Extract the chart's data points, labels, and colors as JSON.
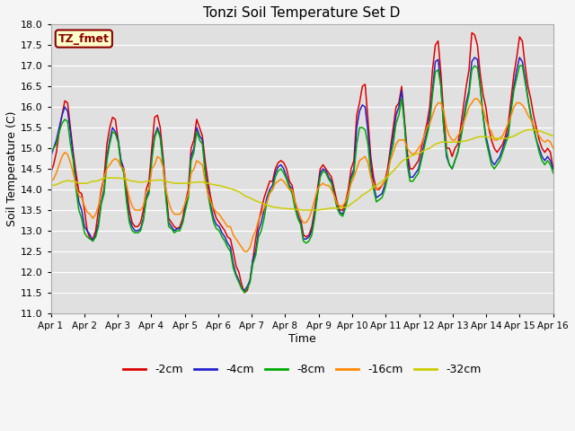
{
  "title": "Tonzi Soil Temperature Set D",
  "xlabel": "Time",
  "ylabel": "Soil Temperature (C)",
  "ylim": [
    11.0,
    18.0
  ],
  "xlim": [
    0,
    15
  ],
  "yticks": [
    11.0,
    11.5,
    12.0,
    12.5,
    13.0,
    13.5,
    14.0,
    14.5,
    15.0,
    15.5,
    16.0,
    16.5,
    17.0,
    17.5,
    18.0
  ],
  "xtick_labels": [
    "Apr 1",
    "Apr 2",
    "Apr 3",
    "Apr 4",
    "Apr 5",
    "Apr 6",
    "Apr 7",
    "Apr 8",
    "Apr 9",
    "Apr 10",
    "Apr 11",
    "Apr 12",
    "Apr 13",
    "Apr 14",
    "Apr 15",
    "Apr 16"
  ],
  "xtick_positions": [
    0,
    1,
    2,
    3,
    4,
    5,
    6,
    7,
    8,
    9,
    10,
    11,
    12,
    13,
    14,
    15
  ],
  "legend_labels": [
    "-2cm",
    "-4cm",
    "-8cm",
    "-16cm",
    "-32cm"
  ],
  "line_colors": [
    "#dd0000",
    "#2222cc",
    "#00aa00",
    "#ff8800",
    "#cccc00"
  ],
  "annotation_text": "TZ_fmet",
  "annotation_color": "#8b0000",
  "annotation_bg": "#ffffcc",
  "bg_color": "#e8e8e8",
  "plot_bg": "#e0e0e0",
  "grid_color": "#ffffff",
  "n_points": 180,
  "series": {
    "neg2cm": [
      14.4,
      14.6,
      14.9,
      15.4,
      15.8,
      16.15,
      16.1,
      15.5,
      14.9,
      14.4,
      13.95,
      13.9,
      13.5,
      13.0,
      12.8,
      12.8,
      13.0,
      13.5,
      14.0,
      14.3,
      15.1,
      15.5,
      15.75,
      15.7,
      15.2,
      14.7,
      14.5,
      14.0,
      13.5,
      13.2,
      13.1,
      13.1,
      13.2,
      13.5,
      14.0,
      14.2,
      15.0,
      15.75,
      15.8,
      15.5,
      14.8,
      14.0,
      13.3,
      13.2,
      13.1,
      13.05,
      13.1,
      13.3,
      13.7,
      14.0,
      15.0,
      15.2,
      15.7,
      15.5,
      15.3,
      14.7,
      14.2,
      13.8,
      13.5,
      13.3,
      13.2,
      13.1,
      13.0,
      12.85,
      12.8,
      12.5,
      12.15,
      12.0,
      11.7,
      11.5,
      11.55,
      11.8,
      12.3,
      12.8,
      13.2,
      13.5,
      13.8,
      14.0,
      14.2,
      14.2,
      14.5,
      14.65,
      14.7,
      14.65,
      14.5,
      14.2,
      14.1,
      13.7,
      13.5,
      13.3,
      12.9,
      12.85,
      12.9,
      13.1,
      13.5,
      14.0,
      14.5,
      14.6,
      14.5,
      14.4,
      14.3,
      14.0,
      13.7,
      13.5,
      13.5,
      13.7,
      14.0,
      14.5,
      14.7,
      15.8,
      16.1,
      16.5,
      16.55,
      15.7,
      14.8,
      14.3,
      14.0,
      14.0,
      14.1,
      14.2,
      14.5,
      15.0,
      15.5,
      16.0,
      16.1,
      16.5,
      15.7,
      14.9,
      14.5,
      14.5,
      14.6,
      14.7,
      15.0,
      15.3,
      15.6,
      16.0,
      16.9,
      17.5,
      17.6,
      16.8,
      15.8,
      15.0,
      15.0,
      14.8,
      15.0,
      15.1,
      15.5,
      16.0,
      16.5,
      16.9,
      17.8,
      17.75,
      17.5,
      16.8,
      16.3,
      16.0,
      15.5,
      15.2,
      15.0,
      14.9,
      15.0,
      15.1,
      15.3,
      15.6,
      16.2,
      16.8,
      17.2,
      17.7,
      17.6,
      17.0,
      16.5,
      16.2,
      15.8,
      15.5,
      15.2,
      15.0,
      14.9,
      15.0,
      14.9,
      14.5
    ],
    "neg4cm": [
      14.8,
      15.0,
      15.2,
      15.5,
      15.8,
      16.0,
      15.9,
      15.4,
      14.8,
      14.2,
      13.7,
      13.5,
      13.1,
      13.0,
      12.9,
      12.75,
      12.9,
      13.2,
      13.7,
      14.0,
      14.8,
      15.2,
      15.5,
      15.4,
      15.2,
      14.7,
      14.5,
      13.8,
      13.3,
      13.1,
      13.0,
      13.0,
      13.05,
      13.3,
      13.8,
      14.0,
      14.8,
      15.3,
      15.5,
      15.3,
      14.7,
      13.9,
      13.2,
      13.1,
      13.0,
      13.05,
      13.05,
      13.2,
      13.6,
      13.9,
      14.8,
      15.0,
      15.5,
      15.3,
      15.2,
      14.5,
      14.0,
      13.6,
      13.3,
      13.15,
      13.1,
      12.95,
      12.85,
      12.7,
      12.6,
      12.2,
      11.95,
      11.8,
      11.6,
      11.55,
      11.65,
      11.8,
      12.3,
      12.5,
      13.0,
      13.2,
      13.5,
      13.8,
      14.0,
      14.1,
      14.4,
      14.55,
      14.6,
      14.5,
      14.3,
      14.1,
      14.0,
      13.6,
      13.4,
      13.2,
      12.8,
      12.8,
      12.85,
      13.0,
      13.4,
      13.9,
      14.4,
      14.5,
      14.45,
      14.3,
      14.2,
      13.9,
      13.6,
      13.45,
      13.4,
      13.6,
      13.9,
      14.3,
      14.5,
      15.5,
      15.9,
      16.05,
      16.0,
      15.4,
      14.6,
      14.1,
      13.8,
      13.85,
      13.9,
      14.1,
      14.4,
      14.9,
      15.3,
      15.8,
      16.0,
      16.4,
      15.6,
      14.8,
      14.3,
      14.3,
      14.4,
      14.5,
      14.8,
      15.1,
      15.4,
      15.8,
      16.4,
      17.1,
      17.15,
      16.5,
      15.5,
      14.8,
      14.6,
      14.5,
      14.7,
      14.9,
      15.3,
      15.7,
      16.1,
      16.4,
      17.1,
      17.2,
      17.15,
      16.5,
      15.8,
      15.3,
      15.0,
      14.7,
      14.6,
      14.7,
      14.8,
      15.0,
      15.2,
      15.4,
      16.0,
      16.5,
      16.9,
      17.2,
      17.1,
      16.7,
      16.2,
      15.8,
      15.5,
      15.2,
      15.0,
      14.8,
      14.7,
      14.8,
      14.7,
      14.5
    ],
    "neg8cm": [
      14.9,
      15.0,
      15.1,
      15.4,
      15.6,
      15.7,
      15.65,
      15.1,
      14.7,
      14.0,
      13.5,
      13.3,
      12.95,
      12.85,
      12.8,
      12.75,
      12.85,
      13.1,
      13.65,
      13.9,
      14.7,
      15.1,
      15.4,
      15.35,
      15.15,
      14.6,
      14.4,
      13.7,
      13.2,
      13.0,
      12.95,
      12.95,
      13.0,
      13.25,
      13.75,
      13.9,
      14.7,
      15.25,
      15.45,
      15.25,
      14.6,
      13.8,
      13.1,
      13.05,
      12.95,
      13.0,
      13.0,
      13.2,
      13.5,
      13.8,
      14.7,
      14.9,
      15.4,
      15.2,
      15.1,
      14.4,
      13.9,
      13.5,
      13.2,
      13.05,
      13.0,
      12.85,
      12.75,
      12.6,
      12.5,
      12.1,
      11.9,
      11.75,
      11.6,
      11.5,
      11.6,
      11.75,
      12.2,
      12.4,
      12.85,
      13.0,
      13.3,
      13.7,
      13.95,
      14.0,
      14.3,
      14.45,
      14.5,
      14.4,
      14.25,
      14.05,
      13.9,
      13.55,
      13.3,
      13.15,
      12.75,
      12.7,
      12.75,
      12.9,
      13.3,
      13.85,
      14.3,
      14.45,
      14.4,
      14.25,
      14.15,
      13.85,
      13.55,
      13.4,
      13.35,
      13.55,
      13.85,
      14.25,
      14.4,
      15.1,
      15.5,
      15.5,
      15.45,
      15.1,
      14.4,
      14.0,
      13.7,
      13.75,
      13.8,
      14.0,
      14.3,
      14.8,
      15.1,
      15.6,
      15.8,
      16.2,
      15.6,
      14.6,
      14.2,
      14.2,
      14.3,
      14.4,
      14.7,
      15.0,
      15.3,
      15.6,
      16.3,
      16.85,
      16.9,
      16.5,
      15.5,
      14.9,
      14.6,
      14.5,
      14.7,
      14.9,
      15.2,
      15.6,
      16.0,
      16.3,
      16.9,
      17.0,
      16.95,
      16.5,
      15.8,
      15.2,
      14.9,
      14.6,
      14.5,
      14.6,
      14.7,
      14.9,
      15.1,
      15.3,
      15.9,
      16.4,
      16.7,
      17.0,
      17.0,
      16.6,
      16.2,
      15.8,
      15.5,
      15.2,
      14.9,
      14.7,
      14.6,
      14.7,
      14.6,
      14.4
    ],
    "neg16cm": [
      14.2,
      14.25,
      14.4,
      14.6,
      14.8,
      14.9,
      14.85,
      14.65,
      14.4,
      14.1,
      13.85,
      13.8,
      13.6,
      13.45,
      13.4,
      13.3,
      13.4,
      13.6,
      13.9,
      14.3,
      14.5,
      14.6,
      14.7,
      14.75,
      14.7,
      14.55,
      14.5,
      14.1,
      13.8,
      13.6,
      13.5,
      13.5,
      13.5,
      13.6,
      13.95,
      14.0,
      14.5,
      14.6,
      14.8,
      14.75,
      14.55,
      14.0,
      13.7,
      13.5,
      13.4,
      13.4,
      13.4,
      13.5,
      13.7,
      13.9,
      14.4,
      14.5,
      14.7,
      14.65,
      14.6,
      14.2,
      13.9,
      13.7,
      13.55,
      13.45,
      13.4,
      13.3,
      13.2,
      13.1,
      13.1,
      12.9,
      12.8,
      12.7,
      12.6,
      12.5,
      12.5,
      12.6,
      12.85,
      13.0,
      13.25,
      13.4,
      13.55,
      13.7,
      13.9,
      14.0,
      14.15,
      14.2,
      14.25,
      14.2,
      14.1,
      14.0,
      14.0,
      13.7,
      13.5,
      13.3,
      13.2,
      13.2,
      13.3,
      13.5,
      13.75,
      14.0,
      14.1,
      14.15,
      14.1,
      14.1,
      14.0,
      13.85,
      13.65,
      13.6,
      13.6,
      13.7,
      13.9,
      14.15,
      14.3,
      14.5,
      14.7,
      14.75,
      14.8,
      14.65,
      14.3,
      14.1,
      14.0,
      14.05,
      14.1,
      14.2,
      14.4,
      14.7,
      14.9,
      15.1,
      15.2,
      15.2,
      15.2,
      15.0,
      14.9,
      14.85,
      14.9,
      15.0,
      15.1,
      15.3,
      15.5,
      15.6,
      15.8,
      16.0,
      16.1,
      16.1,
      15.9,
      15.5,
      15.3,
      15.2,
      15.2,
      15.3,
      15.4,
      15.6,
      15.8,
      16.0,
      16.1,
      16.2,
      16.2,
      16.1,
      15.95,
      15.7,
      15.5,
      15.4,
      15.2,
      15.2,
      15.25,
      15.3,
      15.45,
      15.6,
      15.8,
      16.0,
      16.1,
      16.1,
      16.05,
      15.95,
      15.8,
      15.7,
      15.55,
      15.4,
      15.3,
      15.2,
      15.15,
      15.2,
      15.15,
      15.0
    ],
    "neg32cm": [
      14.1,
      14.1,
      14.12,
      14.15,
      14.18,
      14.2,
      14.22,
      14.2,
      14.2,
      14.18,
      14.15,
      14.15,
      14.15,
      14.15,
      14.18,
      14.2,
      14.2,
      14.22,
      14.25,
      14.27,
      14.28,
      14.28,
      14.28,
      14.28,
      14.28,
      14.27,
      14.27,
      14.25,
      14.22,
      14.2,
      14.2,
      14.18,
      14.18,
      14.18,
      14.2,
      14.2,
      14.22,
      14.22,
      14.23,
      14.23,
      14.22,
      14.2,
      14.18,
      14.17,
      14.15,
      14.15,
      14.15,
      14.15,
      14.15,
      14.15,
      14.17,
      14.17,
      14.18,
      14.18,
      14.18,
      14.17,
      14.15,
      14.13,
      14.12,
      14.1,
      14.1,
      14.08,
      14.06,
      14.04,
      14.02,
      14.0,
      13.97,
      13.95,
      13.9,
      13.85,
      13.82,
      13.8,
      13.76,
      13.73,
      13.7,
      13.67,
      13.65,
      13.62,
      13.6,
      13.58,
      13.57,
      13.56,
      13.55,
      13.54,
      13.54,
      13.53,
      13.53,
      13.52,
      13.51,
      13.51,
      13.5,
      13.5,
      13.5,
      13.5,
      13.5,
      13.5,
      13.51,
      13.52,
      13.53,
      13.54,
      13.55,
      13.55,
      13.55,
      13.55,
      13.56,
      13.57,
      13.6,
      13.65,
      13.7,
      13.75,
      13.8,
      13.87,
      13.9,
      13.95,
      14.0,
      14.05,
      14.1,
      14.15,
      14.2,
      14.25,
      14.3,
      14.38,
      14.45,
      14.52,
      14.6,
      14.68,
      14.72,
      14.76,
      14.8,
      14.83,
      14.85,
      14.88,
      14.9,
      14.95,
      14.98,
      15.0,
      15.05,
      15.1,
      15.12,
      15.15,
      15.15,
      15.15,
      15.15,
      15.15,
      15.15,
      15.15,
      15.16,
      15.17,
      15.18,
      15.2,
      15.22,
      15.25,
      15.27,
      15.28,
      15.28,
      15.28,
      15.27,
      15.26,
      15.25,
      15.24,
      15.23,
      15.23,
      15.24,
      15.25,
      15.27,
      15.3,
      15.33,
      15.37,
      15.4,
      15.43,
      15.45,
      15.45,
      15.45,
      15.44,
      15.42,
      15.4,
      15.37,
      15.35,
      15.32,
      15.3
    ]
  }
}
